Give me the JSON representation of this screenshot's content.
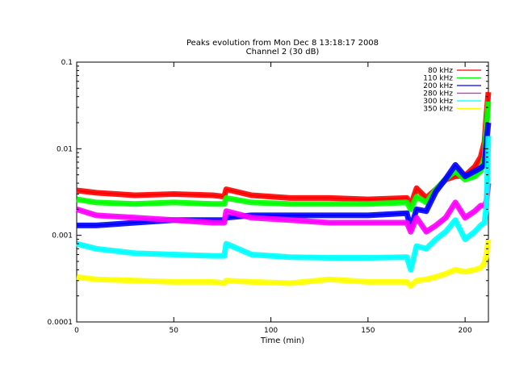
{
  "chart_data": {
    "type": "line",
    "title": "Peaks evolution from Mon Dec  8 13:18:17 2008",
    "subtitle": "Channel 2 (30 dB)",
    "xlabel": "Time (min)",
    "ylabel": "",
    "xlim": [
      0,
      212
    ],
    "ylim": [
      0.0001,
      0.1
    ],
    "yscale": "log",
    "grid": false,
    "legend_position": "top-right",
    "x_ticks": [
      0,
      50,
      100,
      150,
      200
    ],
    "y_ticks": [
      0.0001,
      0.001,
      0.01,
      0.1
    ],
    "x_tick_labels": [
      "0",
      "50",
      "100",
      "150",
      "200"
    ],
    "y_tick_labels": [
      "0.0001",
      "0.001",
      "0.01",
      "0.1"
    ],
    "series": [
      {
        "name": "80 kHz",
        "color": "#ff0000",
        "x": [
          0,
          10,
          30,
          50,
          70,
          76,
          77,
          90,
          110,
          130,
          150,
          170,
          172,
          175,
          180,
          185,
          190,
          195,
          200,
          205,
          208,
          210,
          211,
          212
        ],
        "y": [
          0.0033,
          0.0031,
          0.0029,
          0.003,
          0.0029,
          0.0028,
          0.0034,
          0.0029,
          0.0027,
          0.0027,
          0.0026,
          0.0027,
          0.0022,
          0.0035,
          0.0027,
          0.0034,
          0.0044,
          0.0048,
          0.0049,
          0.0062,
          0.008,
          0.012,
          0.025,
          0.045
        ]
      },
      {
        "name": "110 kHz",
        "color": "#00ff00",
        "x": [
          0,
          10,
          30,
          50,
          70,
          76,
          77,
          90,
          110,
          130,
          150,
          170,
          172,
          175,
          180,
          185,
          190,
          195,
          200,
          205,
          208,
          210,
          211,
          212
        ],
        "y": [
          0.0026,
          0.0024,
          0.0023,
          0.0024,
          0.0023,
          0.0023,
          0.0027,
          0.0024,
          0.0023,
          0.0023,
          0.0023,
          0.0024,
          0.002,
          0.0028,
          0.0024,
          0.0034,
          0.0045,
          0.0055,
          0.0044,
          0.0048,
          0.0055,
          0.008,
          0.018,
          0.035
        ]
      },
      {
        "name": "200 kHz",
        "color": "#0000ff",
        "x": [
          0,
          10,
          30,
          50,
          70,
          76,
          77,
          90,
          110,
          130,
          150,
          170,
          172,
          175,
          180,
          185,
          190,
          195,
          200,
          205,
          208,
          210,
          211,
          212
        ],
        "y": [
          0.0013,
          0.0013,
          0.0014,
          0.0015,
          0.0015,
          0.0015,
          0.0016,
          0.0017,
          0.0017,
          0.0017,
          0.0017,
          0.0018,
          0.0012,
          0.002,
          0.0019,
          0.0032,
          0.0045,
          0.0065,
          0.0048,
          0.0055,
          0.006,
          0.0065,
          0.012,
          0.02
        ]
      },
      {
        "name": "280 kHz",
        "color": "#ff00ff",
        "x": [
          0,
          10,
          30,
          50,
          70,
          76,
          77,
          90,
          110,
          130,
          150,
          170,
          172,
          175,
          180,
          185,
          190,
          195,
          200,
          205,
          208,
          210,
          211,
          212
        ],
        "y": [
          0.002,
          0.0017,
          0.0016,
          0.0015,
          0.0014,
          0.0014,
          0.0019,
          0.0016,
          0.0015,
          0.0014,
          0.0014,
          0.0014,
          0.0011,
          0.0016,
          0.0011,
          0.0013,
          0.0016,
          0.0024,
          0.0016,
          0.0019,
          0.0022,
          0.0022,
          0.0025,
          0.004
        ]
      },
      {
        "name": "300 kHz",
        "color": "#00ffff",
        "x": [
          0,
          10,
          30,
          50,
          70,
          76,
          77,
          90,
          110,
          130,
          150,
          170,
          172,
          175,
          180,
          185,
          190,
          195,
          200,
          205,
          208,
          210,
          211,
          212
        ],
        "y": [
          0.0008,
          0.0007,
          0.00062,
          0.0006,
          0.00058,
          0.00058,
          0.0008,
          0.0006,
          0.00056,
          0.00055,
          0.00055,
          0.00056,
          0.0004,
          0.00075,
          0.0007,
          0.0009,
          0.0011,
          0.0015,
          0.0009,
          0.0011,
          0.0013,
          0.0014,
          0.0022,
          0.014
        ]
      },
      {
        "name": "350 kHz",
        "color": "#ffff00",
        "x": [
          0,
          10,
          30,
          50,
          70,
          76,
          77,
          90,
          110,
          130,
          150,
          170,
          172,
          175,
          180,
          185,
          190,
          195,
          200,
          205,
          208,
          210,
          211,
          212
        ],
        "y": [
          0.00033,
          0.00031,
          0.0003,
          0.00029,
          0.00029,
          0.00028,
          0.0003,
          0.00029,
          0.00028,
          0.00031,
          0.00029,
          0.00029,
          0.00026,
          0.0003,
          0.00031,
          0.00033,
          0.00036,
          0.0004,
          0.00038,
          0.0004,
          0.00042,
          0.00048,
          0.0006,
          0.0009
        ]
      }
    ]
  }
}
